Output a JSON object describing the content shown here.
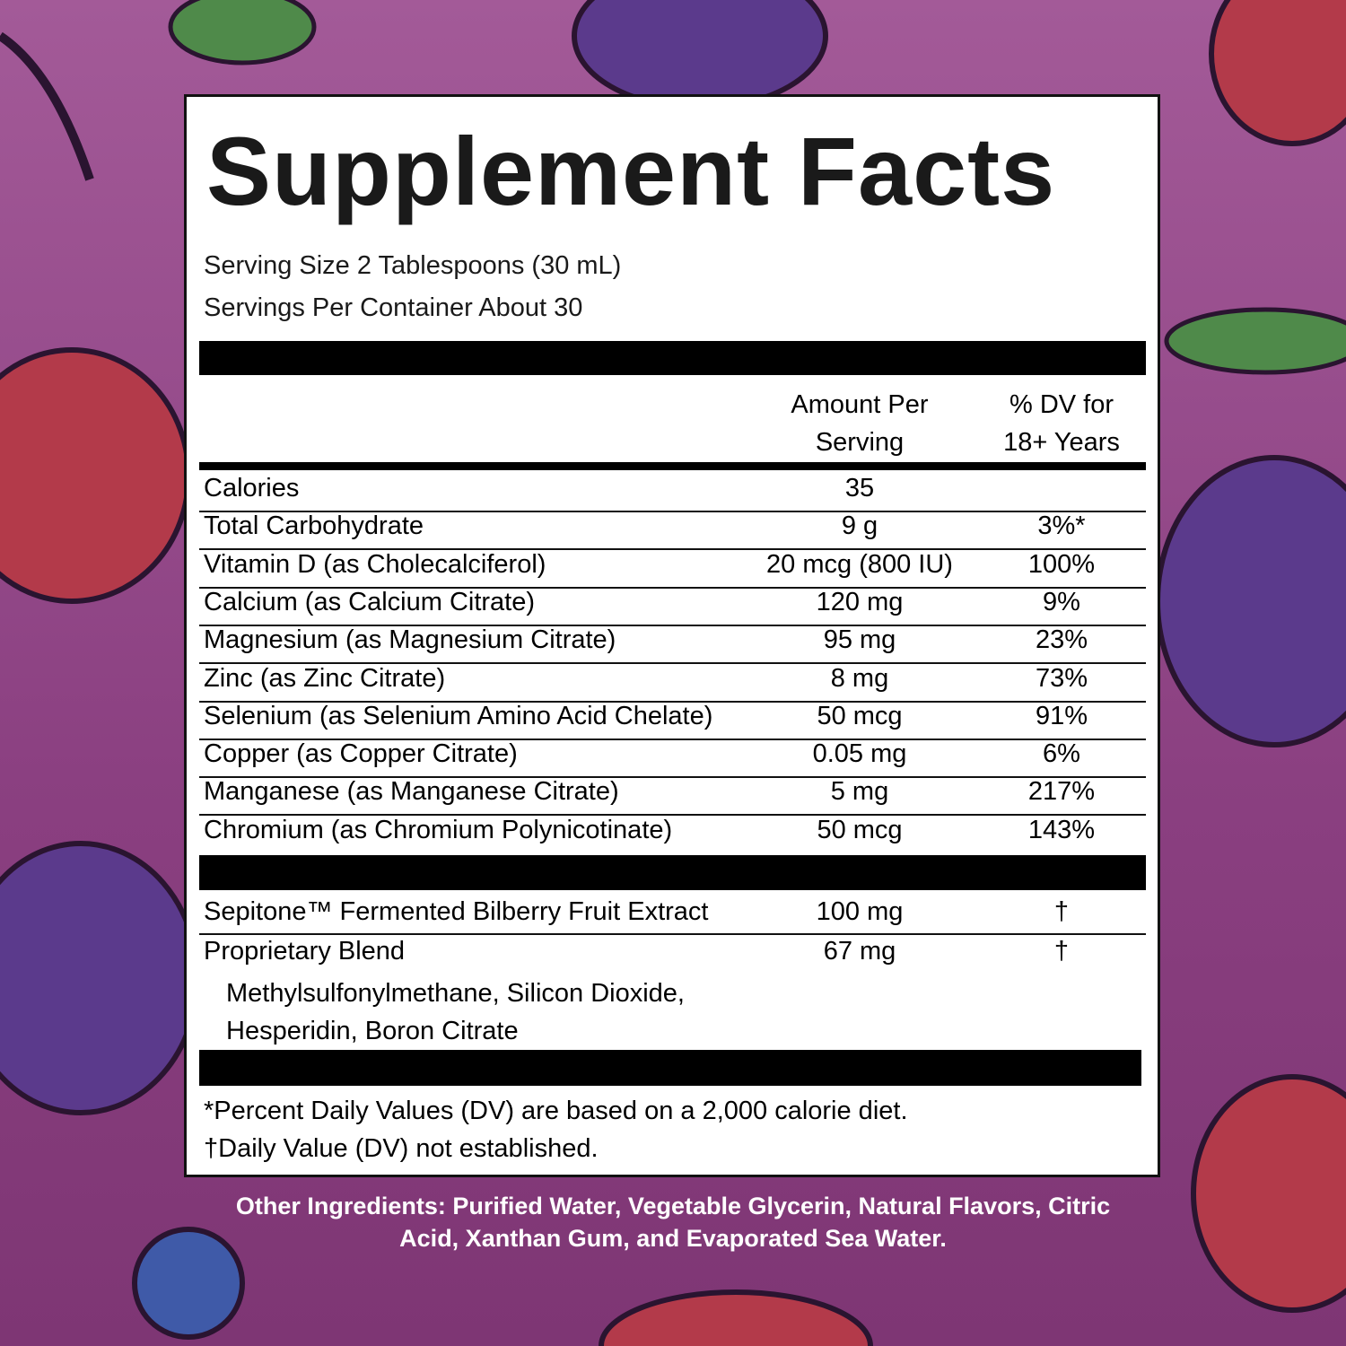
{
  "title": "Supplement Facts",
  "serving_size": "Serving Size 2 Tablespoons (30 mL)",
  "servings_per_container": "Servings Per Container About 30",
  "columns": [
    "Amount Per Serving",
    "% DV for 18+ Years"
  ],
  "rows": [
    [
      "Calories",
      "35",
      ""
    ],
    [
      "Total Carbohydrate",
      "9 g",
      "3%*"
    ],
    [
      "Vitamin D (as Cholecalciferol)",
      "20 mcg (800 IU)",
      "100%"
    ],
    [
      "Calcium (as Calcium Citrate)",
      "120 mg",
      "9%"
    ],
    [
      "Magnesium (as Magnesium Citrate)",
      "95 mg",
      "23%"
    ],
    [
      "Zinc (as Zinc Citrate)",
      "8 mg",
      "73%"
    ],
    [
      "Selenium (as Selenium Amino Acid Chelate)",
      "50 mcg",
      "91%"
    ],
    [
      "Copper (as Copper Citrate)",
      "0.05 mg",
      "6%"
    ],
    [
      "Manganese (as Manganese Citrate)",
      "5 mg",
      "217%"
    ],
    [
      "Chromium (as Chromium Polynicotinate)",
      "50 mcg",
      "143%"
    ]
  ],
  "other_rows": [
    [
      "Sepitone™ Fermented Bilberry Fruit Extract",
      "100 mg",
      "†"
    ],
    [
      "Proprietary Blend",
      "67 mg",
      "†"
    ]
  ],
  "blend_ingredients": "Methylsulfonylmethane, Silicon Dioxide, Hesperidin, Boron Citrate",
  "footnotes": [
    "*Percent Daily Values (DV) are based on a 2,000 calorie diet.",
    "†Daily Value (DV) not established."
  ],
  "other_ingredients": "Other Ingredients: Purified Water, Vegetable Glycerin, Natural Flavors, Citric Acid, Xanthan Gum, and Evaporated Sea Water."
}
